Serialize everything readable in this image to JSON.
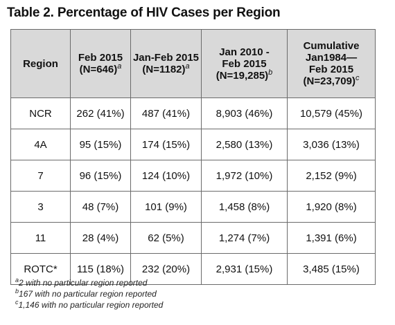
{
  "title": "Table 2. Percentage of HIV Cases per Region",
  "headers": [
    {
      "lines": [
        "Region"
      ],
      "sup": ""
    },
    {
      "lines": [
        "Feb 2015",
        "(N=646)"
      ],
      "sup": "a"
    },
    {
      "lines": [
        "Jan-Feb 2015",
        "(N=1182)"
      ],
      "sup": "a"
    },
    {
      "lines": [
        "Jan 2010 -",
        "Feb 2015",
        "(N=19,285)"
      ],
      "sup": "b"
    },
    {
      "lines": [
        "Cumulative",
        "Jan1984—",
        "Feb 2015",
        "(N=23,709)"
      ],
      "sup": "c"
    }
  ],
  "rows": [
    [
      "NCR",
      "262 (41%)",
      "487 (41%)",
      "8,903 (46%)",
      "10,579 (45%)"
    ],
    [
      "4A",
      "95 (15%)",
      "174 (15%)",
      "2,580 (13%)",
      "3,036 (13%)"
    ],
    [
      "7",
      "96 (15%)",
      "124 (10%)",
      "1,972 (10%)",
      "2,152 (9%)"
    ],
    [
      "3",
      "48 (7%)",
      "101 (9%)",
      "1,458 (8%)",
      "1,920 (8%)"
    ],
    [
      "11",
      "28 (4%)",
      "62 (5%)",
      "1,274 (7%)",
      "1,391 (6%)"
    ],
    [
      "ROTC*",
      "115 (18%)",
      "232 (20%)",
      "2,931 (15%)",
      "3,485 (15%)"
    ]
  ],
  "footnotes": [
    {
      "mark": "a",
      "text": "2 with no particular region reported"
    },
    {
      "mark": "b",
      "text": "167 with no particular region reported"
    },
    {
      "mark": "c",
      "text": "1,146 with no particular region reported"
    }
  ],
  "colors": {
    "header_bg": "#d9d9d9",
    "border": "#6a6a6a"
  }
}
